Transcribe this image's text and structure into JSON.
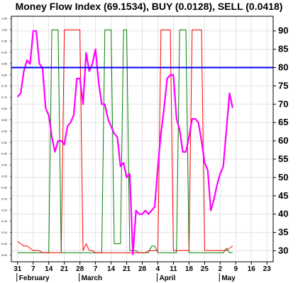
{
  "chart_data": {
    "type": "line",
    "title": "Money Flow Index (69.1534), BUY (0.0128), SELL (0.0418)",
    "right_axis": {
      "ticks": [
        30,
        35,
        40,
        45,
        50,
        55,
        60,
        65,
        70,
        75,
        80,
        85,
        90
      ],
      "range": [
        27,
        94
      ]
    },
    "left_axis": {
      "ticks": [
        "0.00",
        "0.05",
        "0.10",
        "0.15",
        "0.20",
        "0.25",
        "0.30",
        "0.35",
        "0.40",
        "0.45",
        "0.50",
        "0.55",
        "0.60",
        "0.65",
        "0.70",
        "0.75",
        "0.80",
        "0.85",
        "0.90",
        "0.95",
        "1.00",
        "1.05"
      ],
      "range": [
        -0.03,
        1.06
      ]
    },
    "x_axis": {
      "tick_labels": [
        "31",
        "7",
        "14",
        "21",
        "28",
        "7",
        "14",
        "21",
        "28",
        "4",
        "11",
        "18",
        "25",
        "2",
        "9",
        "16",
        "23"
      ],
      "tick_index": [
        0,
        5,
        10,
        15,
        20,
        25,
        30,
        35,
        40,
        45,
        50,
        55,
        60,
        65,
        70,
        75,
        80
      ],
      "month_labels": [
        "February",
        "March",
        "April",
        "May"
      ],
      "month_index": [
        0,
        20,
        45,
        65
      ],
      "range": [
        -2,
        82
      ]
    },
    "reference_line": {
      "value": 80,
      "color": "#0000ff"
    },
    "colors": {
      "mfi": "#ff00ff",
      "buy": "#008000",
      "sell": "#ff0000",
      "reference": "#0000ff"
    },
    "series": [
      {
        "name": "Money Flow Index",
        "axis": "right",
        "x": [
          0,
          1,
          2,
          3,
          4,
          5,
          6,
          7,
          8,
          9,
          10,
          11,
          12,
          13,
          14,
          15,
          16,
          17,
          18,
          19,
          20,
          21,
          22,
          23,
          24,
          25,
          26,
          27,
          28,
          29,
          30,
          31,
          32,
          33,
          34,
          35,
          36,
          37,
          38,
          39,
          40,
          41,
          42,
          43,
          44,
          45,
          46,
          47,
          48,
          49,
          50,
          51,
          52,
          53,
          54,
          55,
          56,
          57,
          58,
          59,
          60,
          61,
          62,
          63,
          64,
          65,
          66,
          67,
          68,
          69
        ],
        "values": [
          72,
          73,
          79,
          82,
          81,
          90,
          90,
          81,
          80,
          69,
          67,
          61,
          57,
          60,
          60,
          59,
          64,
          65,
          67,
          77,
          77,
          70,
          84,
          79,
          81,
          85,
          76,
          70,
          70,
          66,
          64,
          62,
          61,
          53,
          54,
          50,
          51,
          29,
          41,
          40,
          40,
          41,
          40,
          41,
          42,
          53,
          62,
          69,
          77,
          78,
          78,
          66,
          63,
          57,
          57,
          61,
          66,
          66,
          65,
          60,
          54,
          52,
          41,
          44,
          48,
          51,
          53,
          63,
          73,
          69
        ]
      },
      {
        "name": "BUY",
        "axis": "left",
        "x": [
          0,
          1,
          2,
          3,
          4,
          5,
          6,
          7,
          8,
          9,
          10,
          11,
          12,
          13,
          14,
          15,
          16,
          17,
          18,
          19,
          20,
          21,
          22,
          23,
          24,
          25,
          26,
          27,
          28,
          29,
          30,
          31,
          32,
          33,
          34,
          35,
          36,
          37,
          38,
          39,
          40,
          41,
          42,
          43,
          44,
          45,
          46,
          47,
          48,
          49,
          50,
          51,
          52,
          53,
          54,
          55,
          56,
          57,
          58,
          59,
          60,
          61,
          62,
          63,
          64,
          65,
          66,
          67,
          68,
          69
        ],
        "values": [
          0.01,
          0.01,
          0.01,
          0.01,
          0.01,
          0.01,
          0.01,
          0.01,
          0.01,
          0.01,
          0.01,
          1.0,
          1.0,
          1.0,
          0.01,
          0.01,
          0.01,
          0.01,
          0.01,
          0.01,
          0.01,
          0.01,
          0.01,
          0.01,
          0.01,
          0.01,
          0.01,
          0.01,
          1.0,
          1.0,
          1.0,
          0.05,
          0.05,
          0.05,
          1.0,
          1.0,
          0.02,
          0.02,
          0.02,
          0.01,
          0.01,
          0.01,
          0.01,
          0.04,
          0.04,
          0.01,
          0.01,
          0.01,
          0.01,
          0.01,
          0.01,
          0.01,
          1.0,
          1.0,
          1.0,
          0.01,
          0.01,
          0.01,
          0.01,
          0.01,
          0.01,
          0.01,
          0.01,
          0.01,
          0.01,
          0.01,
          0.01,
          0.03,
          0.01,
          0.01
        ]
      },
      {
        "name": "SELL",
        "axis": "left",
        "x": [
          0,
          1,
          2,
          3,
          4,
          5,
          6,
          7,
          8,
          9,
          10,
          11,
          12,
          13,
          14,
          15,
          16,
          17,
          18,
          19,
          20,
          21,
          22,
          23,
          24,
          25,
          26,
          27,
          28,
          29,
          30,
          31,
          32,
          33,
          34,
          35,
          36,
          37,
          38,
          39,
          40,
          41,
          42,
          43,
          44,
          45,
          46,
          47,
          48,
          49,
          50,
          51,
          52,
          53,
          54,
          55,
          56,
          57,
          58,
          59,
          60,
          61,
          62,
          63,
          64,
          65,
          66,
          67,
          68,
          69
        ],
        "values": [
          0.06,
          0.05,
          0.04,
          0.04,
          0.03,
          0.02,
          0.02,
          0.02,
          0.01,
          0.01,
          0.01,
          0.01,
          0.01,
          0.01,
          0.01,
          1.0,
          1.0,
          1.0,
          1.0,
          1.0,
          1.0,
          0.02,
          0.05,
          0.02,
          0.02,
          0.01,
          0.01,
          0.01,
          0.01,
          0.01,
          0.01,
          0.01,
          0.01,
          0.01,
          0.01,
          0.01,
          0.01,
          0.01,
          0.01,
          0.01,
          0.01,
          0.01,
          0.02,
          0.02,
          0.02,
          0.02,
          1.0,
          1.0,
          1.0,
          1.0,
          0.02,
          0.02,
          0.02,
          0.02,
          0.02,
          0.02,
          1.0,
          1.0,
          1.0,
          1.0,
          0.02,
          0.02,
          0.02,
          0.02,
          0.02,
          0.02,
          0.02,
          0.02,
          0.03,
          0.04
        ]
      }
    ]
  }
}
